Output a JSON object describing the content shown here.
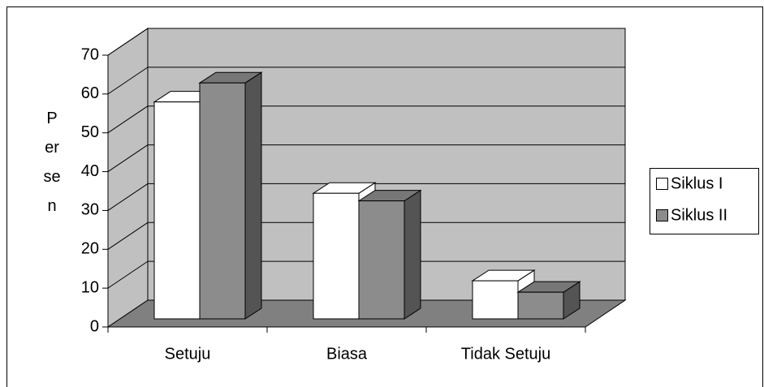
{
  "chart_data": {
    "type": "bar3d",
    "y_label": "Persen",
    "categories": [
      "Setuju",
      "Biasa",
      "Tidak Setuju"
    ],
    "series": [
      {
        "name": "Siklus I",
        "color": "#ffffff",
        "values": [
          57,
          33,
          10
        ]
      },
      {
        "name": "Siklus II",
        "color": "#8c8c8c",
        "values": [
          62,
          31,
          7
        ]
      }
    ],
    "ylim": [
      0,
      70
    ],
    "yticks": [
      0,
      10,
      20,
      30,
      40,
      50,
      60,
      70
    ],
    "grid": true,
    "legend": "right"
  }
}
